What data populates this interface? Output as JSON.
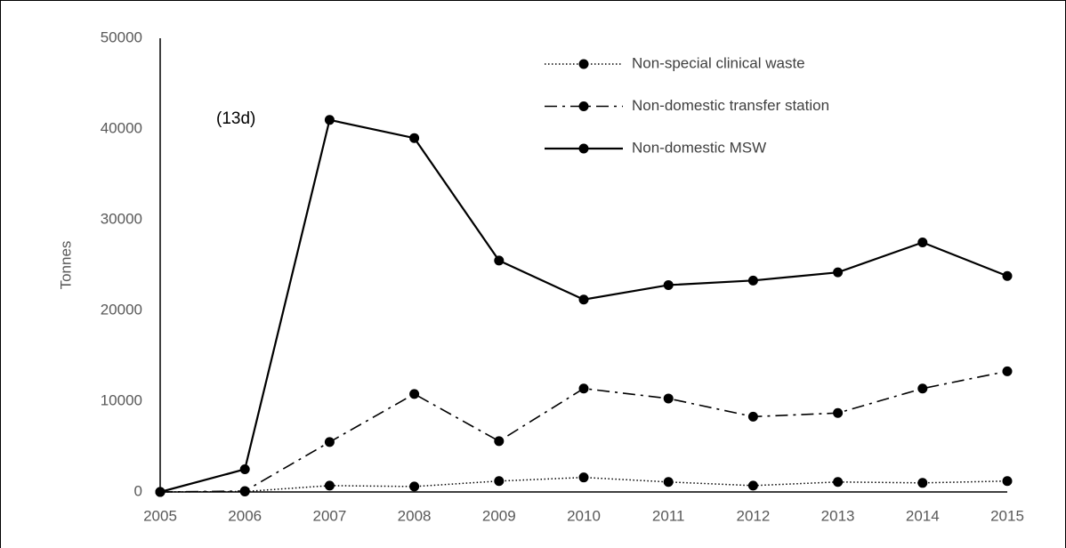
{
  "chart_data": {
    "type": "line",
    "y_label": "Tonnes",
    "annotation": "(13d)",
    "categories": [
      "2005",
      "2006",
      "2007",
      "2008",
      "2009",
      "2010",
      "2011",
      "2012",
      "2013",
      "2014",
      "2015"
    ],
    "series": [
      {
        "name": "Non-special clinical waste",
        "color": "#000000",
        "dash": "dotted",
        "values": [
          0,
          50,
          700,
          600,
          1200,
          1600,
          1100,
          700,
          1100,
          1000,
          1200
        ]
      },
      {
        "name": "Non-domestic transfer station",
        "color": "#000000",
        "dash": "dashdot",
        "values": [
          0,
          100,
          5500,
          10800,
          5600,
          11400,
          10300,
          8300,
          8700,
          11400,
          13300
        ]
      },
      {
        "name": "Non-domestic MSW",
        "color": "#000000",
        "dash": "solid",
        "values": [
          0,
          2500,
          41000,
          39000,
          25500,
          21200,
          22800,
          23300,
          24200,
          27500,
          23800
        ]
      }
    ],
    "ylim": [
      0,
      50000
    ],
    "yticks": [
      0,
      10000,
      20000,
      30000,
      40000,
      50000
    ],
    "grid": false
  }
}
